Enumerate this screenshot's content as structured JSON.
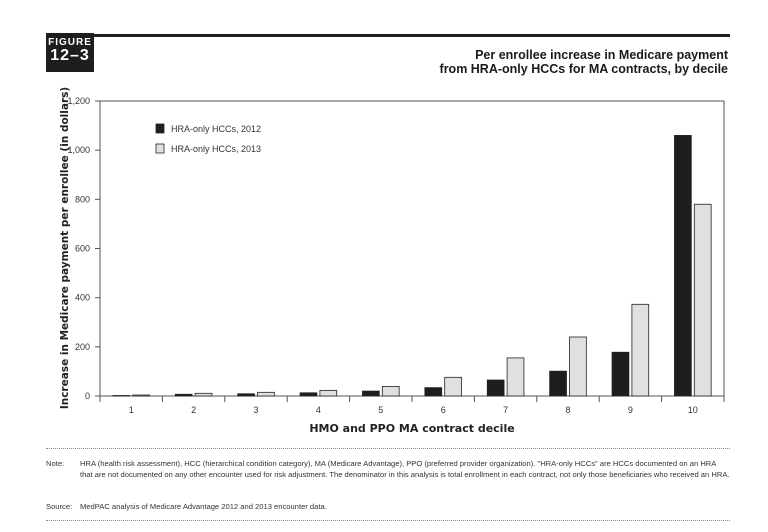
{
  "figure": {
    "label_word": "FIGURE",
    "label_number": "12–3"
  },
  "title_lines": [
    "Per enrollee increase in Medicare payment",
    "from HRA-only HCCs for MA contracts, by decile"
  ],
  "chart_data": {
    "type": "bar",
    "title": "Per enrollee increase in Medicare payment from HRA-only HCCs for MA contracts, by decile",
    "xlabel": "HMO and PPO MA contract decile",
    "ylabel": "Increase in Medicare payment per enrollee (in dollars)",
    "categories": [
      "1",
      "2",
      "3",
      "4",
      "5",
      "6",
      "7",
      "8",
      "9",
      "10"
    ],
    "ylim": [
      0,
      1200
    ],
    "yticks": [
      0,
      200,
      400,
      600,
      800,
      1000,
      1200
    ],
    "ytick_labels": [
      "0",
      "200",
      "400",
      "600",
      "800",
      "1,000",
      "1,200"
    ],
    "grid": false,
    "legend_position": "top-left",
    "series": [
      {
        "name": "HRA-only HCCs, 2012",
        "color": "#1e1e1e",
        "values": [
          2,
          7,
          9,
          13,
          20,
          34,
          65,
          101,
          178,
          1060
        ]
      },
      {
        "name": "HRA-only HCCs, 2013",
        "color": "#e0e0e0",
        "values": [
          4,
          11,
          15,
          23,
          39,
          76,
          155,
          240,
          373,
          780
        ]
      }
    ]
  },
  "note": {
    "label": "Note:",
    "text": "HRA (health risk assessment), HCC (hierarchical condition category), MA (Medicare Advantage), PPO (preferred provider organization). \"HRA-only HCCs\" are HCCs documented on an HRA that are not documented on any other encounter used for risk adjustment. The denominator in this analysis is total enrollment in each contract, not only those beneficiaries who received an HRA."
  },
  "source": {
    "label": "Source:",
    "text": "MedPAC analysis of Medicare Advantage 2012 and 2013 encounter data."
  }
}
